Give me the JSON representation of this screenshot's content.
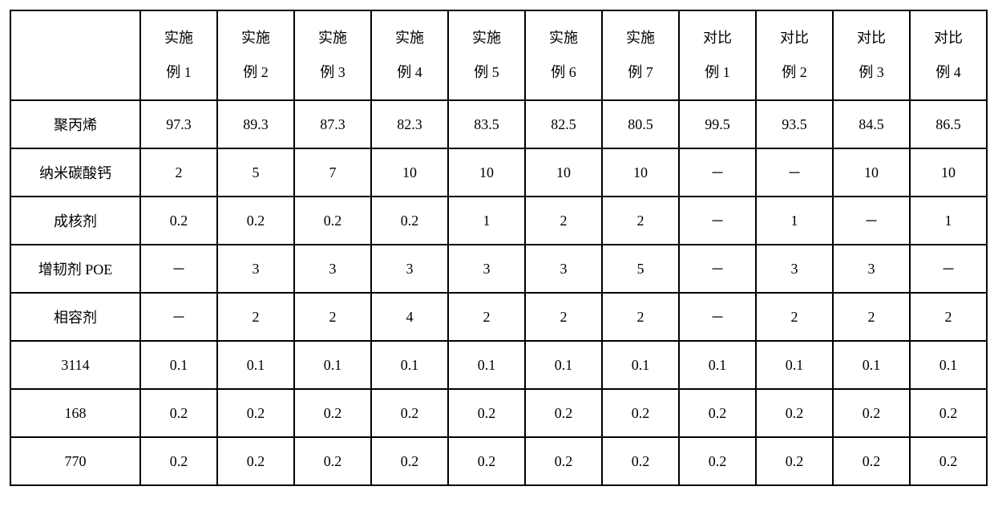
{
  "table": {
    "type": "table",
    "background_color": "#ffffff",
    "border_color": "#000000",
    "border_width": 2,
    "text_color": "#000000",
    "font_family": "SimSun",
    "cell_fontsize": 18,
    "header_row_height": 110,
    "data_row_height": 58,
    "first_col_width": 162,
    "data_col_width": 96,
    "columns": [
      {
        "l1": "",
        "l2": ""
      },
      {
        "l1": "实施",
        "l2": "例 1"
      },
      {
        "l1": "实施",
        "l2": "例 2"
      },
      {
        "l1": "实施",
        "l2": "例 3"
      },
      {
        "l1": "实施",
        "l2": "例 4"
      },
      {
        "l1": "实施",
        "l2": "例 5"
      },
      {
        "l1": "实施",
        "l2": "例 6"
      },
      {
        "l1": "实施",
        "l2": "例 7"
      },
      {
        "l1": "对比",
        "l2": "例 1"
      },
      {
        "l1": "对比",
        "l2": "例 2"
      },
      {
        "l1": "对比",
        "l2": "例 3"
      },
      {
        "l1": "对比",
        "l2": "例 4"
      }
    ],
    "rows": [
      {
        "label": "聚丙烯",
        "cells": [
          "97.3",
          "89.3",
          "87.3",
          "82.3",
          "83.5",
          "82.5",
          "80.5",
          "99.5",
          "93.5",
          "84.5",
          "86.5"
        ]
      },
      {
        "label": "纳米碳酸钙",
        "cells": [
          "2",
          "5",
          "7",
          "10",
          "10",
          "10",
          "10",
          "－",
          "－",
          "10",
          "10"
        ]
      },
      {
        "label": "成核剂",
        "cells": [
          "0.2",
          "0.2",
          "0.2",
          "0.2",
          "1",
          "2",
          "2",
          "－",
          "1",
          "－",
          "1"
        ]
      },
      {
        "label": "增韧剂 POE",
        "cells": [
          "－",
          "3",
          "3",
          "3",
          "3",
          "3",
          "5",
          "－",
          "3",
          "3",
          "－"
        ]
      },
      {
        "label": "相容剂",
        "cells": [
          "－",
          "2",
          "2",
          "4",
          "2",
          "2",
          "2",
          "－",
          "2",
          "2",
          "2"
        ]
      },
      {
        "label": "3114",
        "cells": [
          "0.1",
          "0.1",
          "0.1",
          "0.1",
          "0.1",
          "0.1",
          "0.1",
          "0.1",
          "0.1",
          "0.1",
          "0.1"
        ]
      },
      {
        "label": "168",
        "cells": [
          "0.2",
          "0.2",
          "0.2",
          "0.2",
          "0.2",
          "0.2",
          "0.2",
          "0.2",
          "0.2",
          "0.2",
          "0.2"
        ]
      },
      {
        "label": "770",
        "cells": [
          "0.2",
          "0.2",
          "0.2",
          "0.2",
          "0.2",
          "0.2",
          "0.2",
          "0.2",
          "0.2",
          "0.2",
          "0.2"
        ]
      }
    ]
  }
}
